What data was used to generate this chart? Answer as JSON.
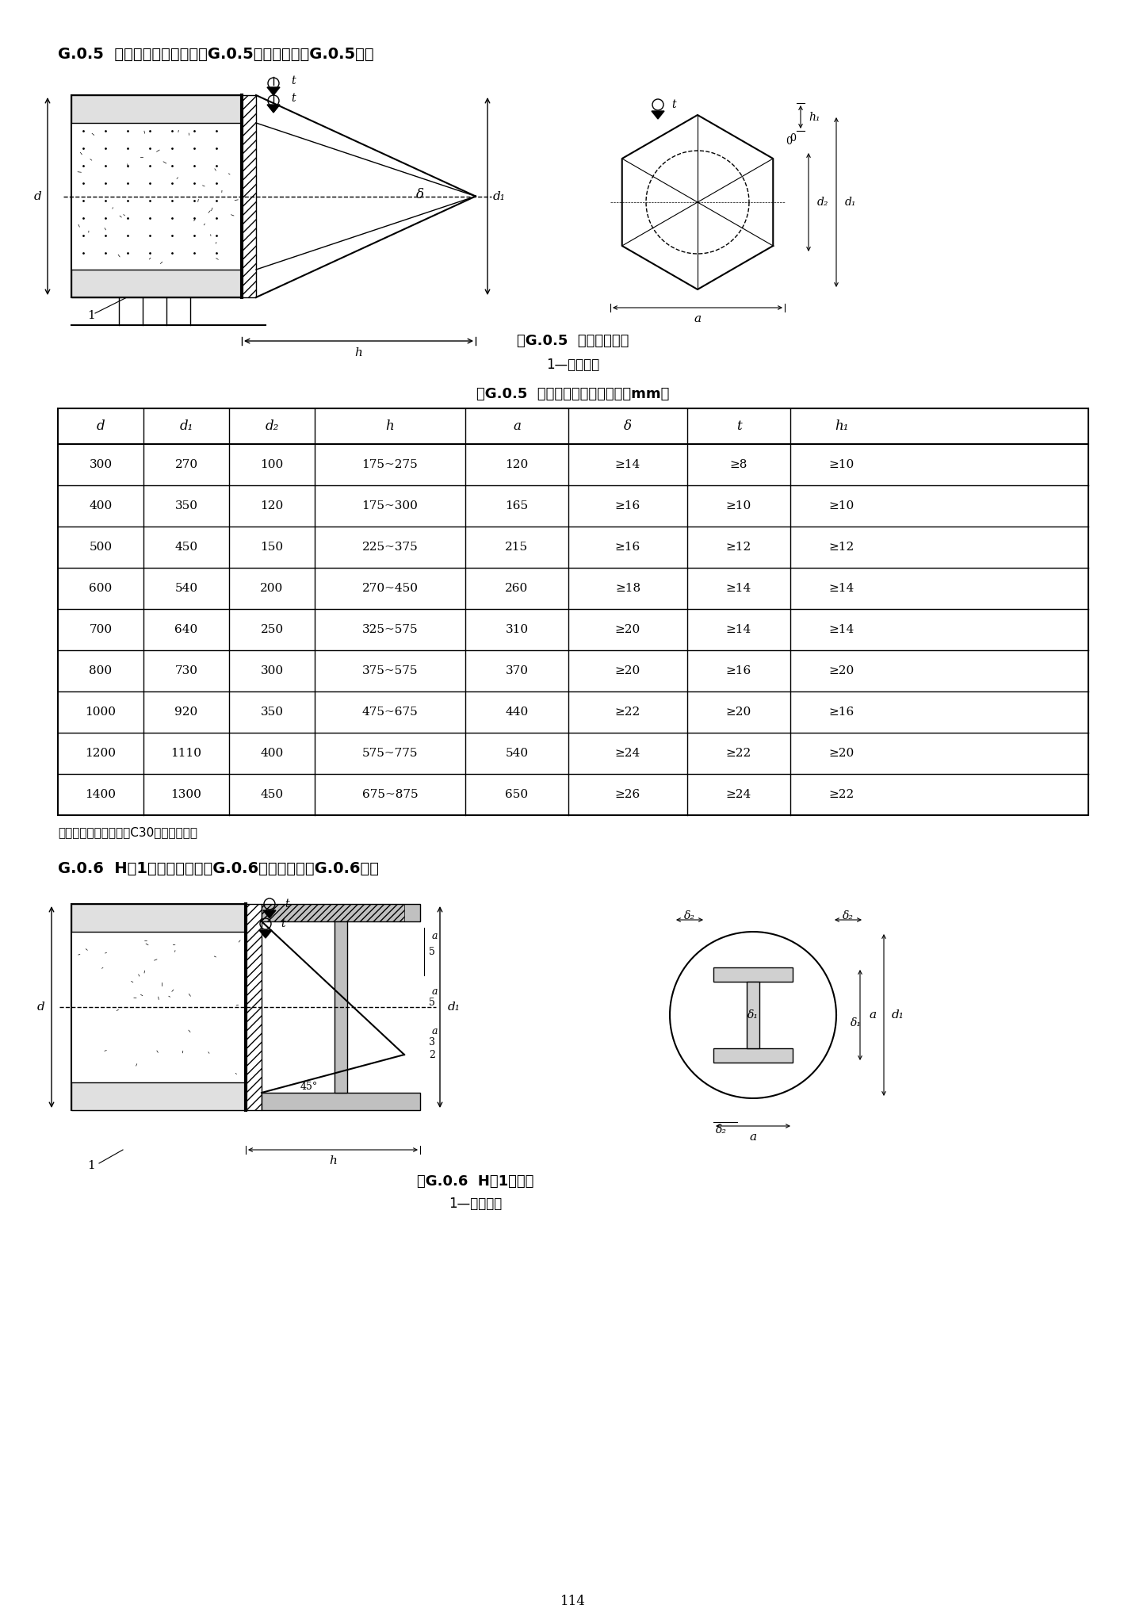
{
  "page_bg": "#ffffff",
  "section_title_1": "G.0.5  六棱锥型桩尖构造（图G.0.5）及尺寸（表G.0.5）：",
  "fig_caption_1": "图G.0.5  六棱锥型桩尖",
  "fig_subcaption_1": "1—管桩桩身",
  "table_title_1": "表G.0.5  六棱锥型桩尖构造尺寸（mm）",
  "table_headers": [
    "d",
    "d₁",
    "d₂",
    "h",
    "a",
    "δ",
    "t",
    "h₁"
  ],
  "table_rows": [
    [
      "300",
      "270",
      "100",
      "175~275",
      "120",
      "≥14",
      "≥8",
      "≥10"
    ],
    [
      "400",
      "350",
      "120",
      "175~300",
      "165",
      "≥16",
      "≥10",
      "≥10"
    ],
    [
      "500",
      "450",
      "150",
      "225~375",
      "215",
      "≥16",
      "≥12",
      "≥12"
    ],
    [
      "600",
      "540",
      "200",
      "270~450",
      "260",
      "≥18",
      "≥14",
      "≥14"
    ],
    [
      "700",
      "640",
      "250",
      "325~575",
      "310",
      "≥20",
      "≥14",
      "≥14"
    ],
    [
      "800",
      "730",
      "300",
      "375~575",
      "370",
      "≥20",
      "≥16",
      "≥20"
    ],
    [
      "1000",
      "920",
      "350",
      "475~675",
      "440",
      "≥22",
      "≥20",
      "≥16"
    ],
    [
      "1200",
      "1110",
      "400",
      "575~775",
      "540",
      "≥24",
      "≥22",
      "≥20"
    ],
    [
      "1400",
      "1300",
      "450",
      "675~875",
      "650",
      "≥26",
      "≥24",
      "≥22"
    ]
  ],
  "table_note_1": "注：必要时桩尖内可灌C30混凝土填实。",
  "section_title_2": "G.0.6  H钢1型桩尖构造（图G.0.6）及尺寸（表G.0.6）：",
  "fig_caption_2": "图G.0.6  H钢1型桩尖",
  "fig_subcaption_2": "1—管桩桩身",
  "page_number": "114"
}
